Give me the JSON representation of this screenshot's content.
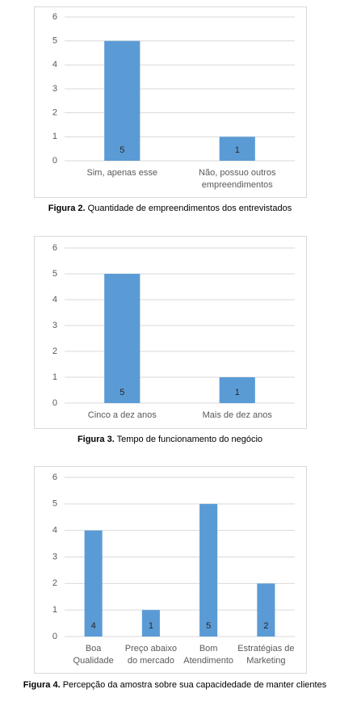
{
  "chart_data": [
    {
      "type": "bar",
      "categories": [
        "Sim, apenas esse",
        "Não, possuo outros\nempreendimentos"
      ],
      "values": [
        5,
        1
      ],
      "color": "#5b9bd5",
      "ylim": [
        0,
        6
      ],
      "yticks": [
        0,
        1,
        2,
        3,
        4,
        5,
        6
      ],
      "grid": true,
      "caption_label": "Figura 2.",
      "caption": "Quantidade de empreendimentos dos entrevistados"
    },
    {
      "type": "bar",
      "categories": [
        "Cinco a dez anos",
        "Mais de dez anos"
      ],
      "values": [
        5,
        1
      ],
      "color": "#5b9bd5",
      "ylim": [
        0,
        6
      ],
      "yticks": [
        0,
        1,
        2,
        3,
        4,
        5,
        6
      ],
      "grid": true,
      "caption_label": "Figura 3.",
      "caption": "Tempo de funcionamento do negócio"
    },
    {
      "type": "bar",
      "categories": [
        "Boa\nQualidade",
        "Preço abaixo\ndo mercado",
        "Bom\nAtendimento",
        "Estratégias de\nMarketing"
      ],
      "values": [
        4,
        1,
        5,
        2
      ],
      "color": "#5b9bd5",
      "ylim": [
        0,
        6
      ],
      "yticks": [
        0,
        1,
        2,
        3,
        4,
        5,
        6
      ],
      "grid": true,
      "caption_label": "Figura 4.",
      "caption": "Percepção da amostra sobre sua capacidedade de manter clientes"
    }
  ]
}
